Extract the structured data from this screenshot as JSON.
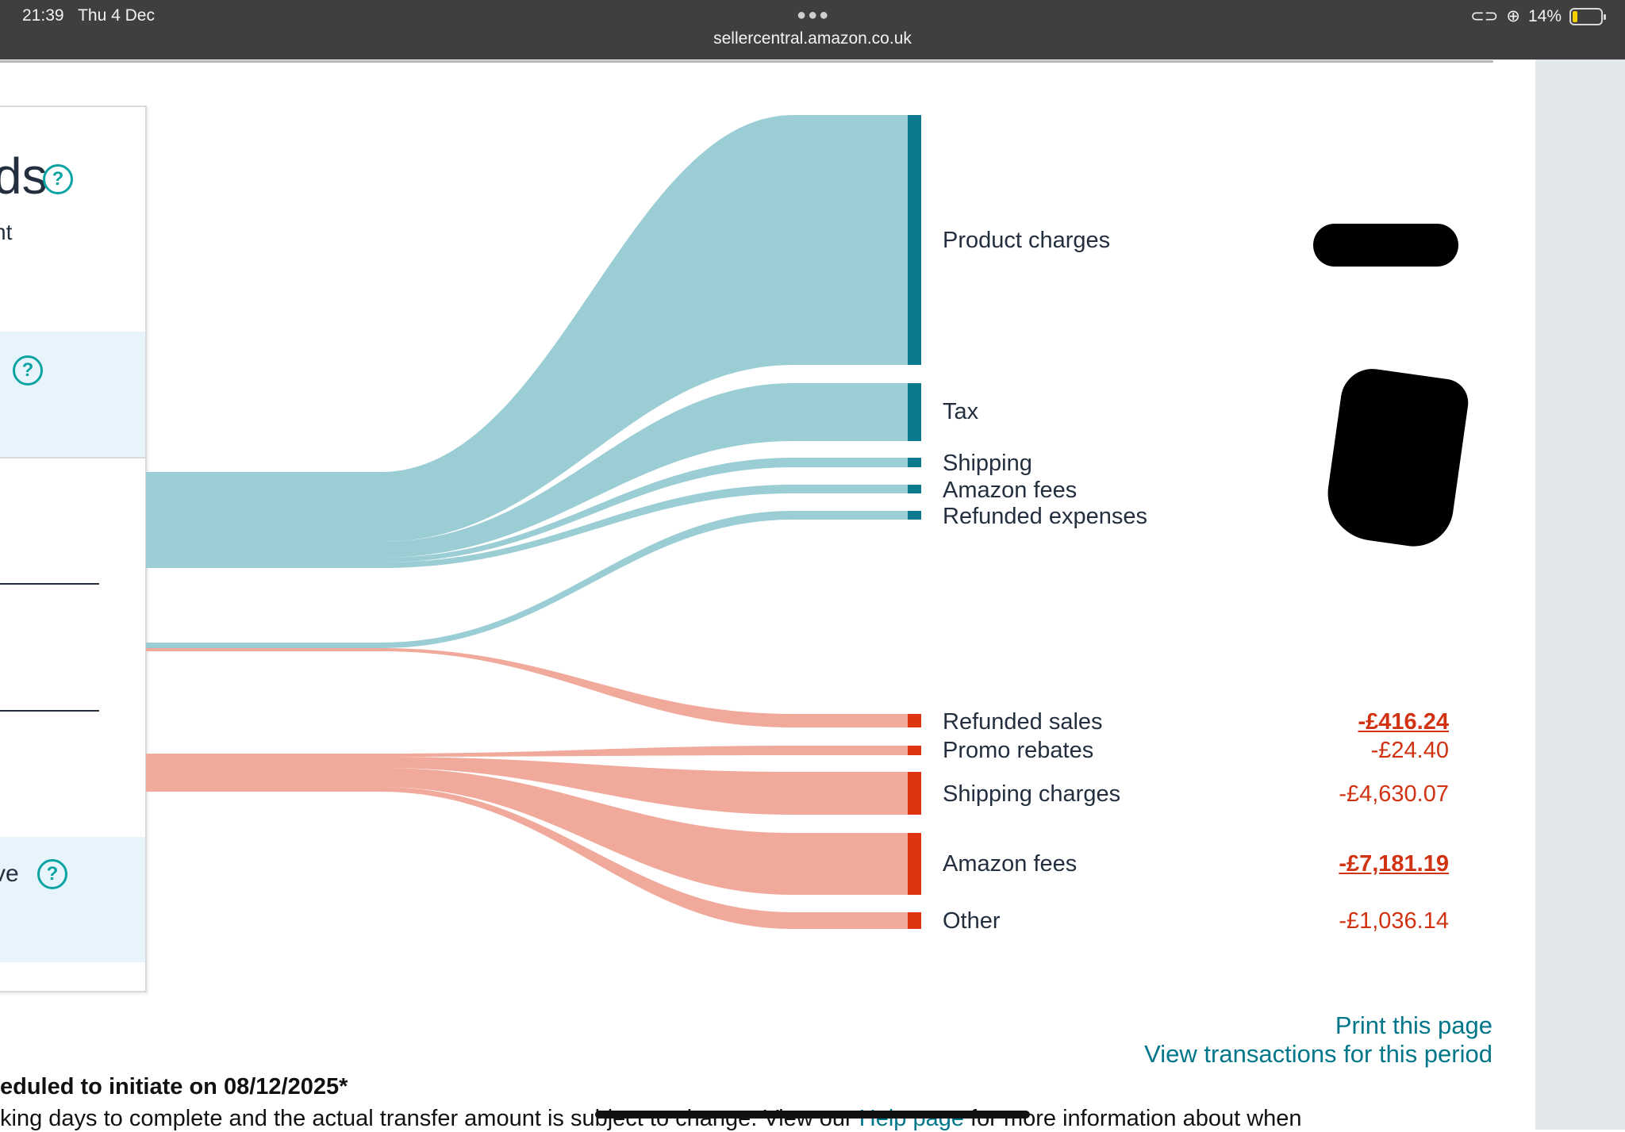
{
  "status_bar": {
    "time": "21:39",
    "date": "Thu 4 Dec",
    "url": "sellercentral.amazon.co.uk",
    "battery": "14%"
  },
  "card": {
    "title_fragment": "ds",
    "subtitle_fragment": "nt",
    "band2_fragment": "ve"
  },
  "sankey": {
    "income_color": "#9bcdd5",
    "income_node_color": "#0b7a8c",
    "expense_color": "#f0a99a",
    "expense_node_color": "#de3412",
    "income_nodes": [
      {
        "label": "Product charges"
      },
      {
        "label": "Tax"
      },
      {
        "label": "Shipping"
      },
      {
        "label": "Amazon fees"
      },
      {
        "label": "Refunded expenses"
      }
    ],
    "expense_nodes": [
      {
        "label": "Refunded sales",
        "value": "-£416.24",
        "link": true
      },
      {
        "label": "Promo rebates",
        "value": "-£24.40",
        "link": false
      },
      {
        "label": "Shipping charges",
        "value": "-£4,630.07",
        "link": false
      },
      {
        "label": "Amazon fees",
        "value": "-£7,181.19",
        "link": true
      },
      {
        "label": "Other",
        "value": "-£1,036.14",
        "link": false
      }
    ]
  },
  "actions": {
    "print": "Print this page",
    "view_transactions": "View transactions for this period"
  },
  "footer": {
    "line1": "eduled to initiate on 08/12/2025*",
    "line2_start": "king days to complete and the actual transfer amount is subject to change. View our ",
    "help_link": "Help page",
    "line2_end": " for more information about when"
  }
}
